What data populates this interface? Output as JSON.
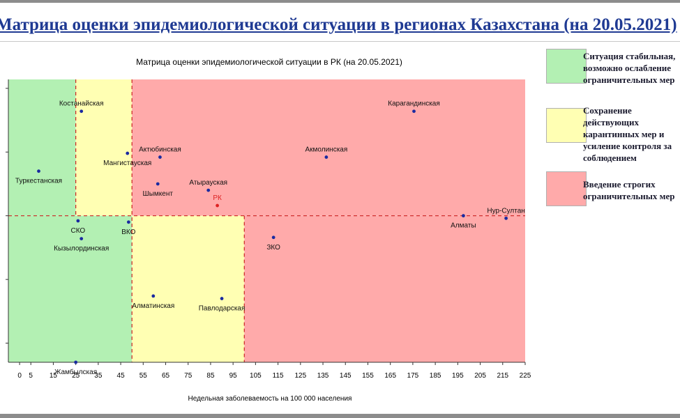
{
  "page": {
    "title": "Матрица оценки эпидемиологической ситуации в регионах Казахстана (на 20.05.2021)"
  },
  "legend": [
    {
      "label_lines": [
        "Ситуация стабильная,",
        "возможно ослабление",
        "ограничительных мер"
      ],
      "color": "#b3f0b3"
    },
    {
      "label_lines": [
        "Сохранение",
        "действующих",
        "карантинных мер и",
        "усиление контроля за",
        "соблюдением"
      ],
      "color": "#ffffb3"
    },
    {
      "label_lines": [
        "Введение строгих",
        "ограничительных мер"
      ],
      "color": "#ffaaaa"
    }
  ],
  "chart_data": {
    "type": "scatter",
    "title": "Матрица оценки эпидемиологической ситуации в РК (на 20.05.2021)",
    "xlabel": "Недельная заболеваемость на 100 000 населения",
    "ylabel": "",
    "xlim": [
      -5,
      225
    ],
    "ylim": [
      0,
      2.22
    ],
    "x_ticks": [
      0,
      5,
      15,
      25,
      35,
      45,
      55,
      65,
      75,
      85,
      95,
      105,
      115,
      125,
      135,
      145,
      155,
      165,
      175,
      185,
      195,
      205,
      215,
      225
    ],
    "y_tick_values": [
      0.15,
      0.65,
      1.15,
      1.65,
      2.15
    ],
    "grid": false,
    "zones": [
      {
        "x": [
          -5,
          25
        ],
        "y": [
          1.15,
          2.22
        ],
        "color": "#b3f0b3"
      },
      {
        "x": [
          25,
          50
        ],
        "y": [
          1.15,
          2.22
        ],
        "color": "#ffffb3"
      },
      {
        "x": [
          50,
          225
        ],
        "y": [
          1.15,
          2.22
        ],
        "color": "#ffaaaa"
      },
      {
        "x": [
          -5,
          50
        ],
        "y": [
          0,
          1.15
        ],
        "color": "#b3f0b3"
      },
      {
        "x": [
          50,
          100
        ],
        "y": [
          0,
          1.15
        ],
        "color": "#ffffb3"
      },
      {
        "x": [
          100,
          225
        ],
        "y": [
          0,
          1.15
        ],
        "color": "#ffaaaa"
      }
    ],
    "reference_lines": [
      {
        "orientation": "horizontal",
        "value": 1.15,
        "color": "#cc2222"
      },
      {
        "orientation": "vertical",
        "value": 25,
        "range": [
          1.15,
          2.22
        ],
        "color": "#cc2222"
      },
      {
        "orientation": "vertical",
        "value": 50,
        "range": [
          0,
          2.22
        ],
        "color": "#cc2222"
      },
      {
        "orientation": "vertical",
        "value": 100,
        "range": [
          0,
          1.15
        ],
        "color": "#cc2222"
      }
    ],
    "point_color": "#1a2aa0",
    "highlight_color": "#dd2222",
    "points": [
      {
        "label": "Костанайская",
        "x": 27.5,
        "y": 1.97,
        "label_pos": "above"
      },
      {
        "label": "Карагандинская",
        "x": 175.5,
        "y": 1.97,
        "label_pos": "above"
      },
      {
        "label": "Мангистауская",
        "x": 48,
        "y": 1.64,
        "label_pos": "below"
      },
      {
        "label": "Актюбинская",
        "x": 62.5,
        "y": 1.61,
        "label_pos": "above"
      },
      {
        "label": "Акмолинская",
        "x": 136.5,
        "y": 1.61,
        "label_pos": "above"
      },
      {
        "label": "Туркестанская",
        "x": 8.5,
        "y": 1.5,
        "label_pos": "below"
      },
      {
        "label": "Шымкент",
        "x": 61.5,
        "y": 1.4,
        "label_pos": "below"
      },
      {
        "label": "Атырауская",
        "x": 84,
        "y": 1.35,
        "label_pos": "above"
      },
      {
        "label": "РК",
        "x": 88,
        "y": 1.23,
        "label_pos": "above",
        "highlight": true
      },
      {
        "label": "Алматы",
        "x": 197.5,
        "y": 1.15,
        "label_pos": "below"
      },
      {
        "label": "Нур-Султан",
        "x": 216.5,
        "y": 1.13,
        "label_pos": "above"
      },
      {
        "label": "СКО",
        "x": 26,
        "y": 1.11,
        "label_pos": "below"
      },
      {
        "label": "ВКО",
        "x": 48.5,
        "y": 1.1,
        "label_pos": "below"
      },
      {
        "label": "Кызылординская",
        "x": 27.5,
        "y": 0.97,
        "label_pos": "below"
      },
      {
        "label": "ЗКО",
        "x": 113,
        "y": 0.98,
        "label_pos": "below"
      },
      {
        "label": "Алматинская",
        "x": 59.5,
        "y": 0.52,
        "label_pos": "below"
      },
      {
        "label": "Павлодарская",
        "x": 90,
        "y": 0.5,
        "label_pos": "below"
      },
      {
        "label": "Жамбылская",
        "x": 25,
        "y": 0.0,
        "label_pos": "below"
      }
    ]
  }
}
